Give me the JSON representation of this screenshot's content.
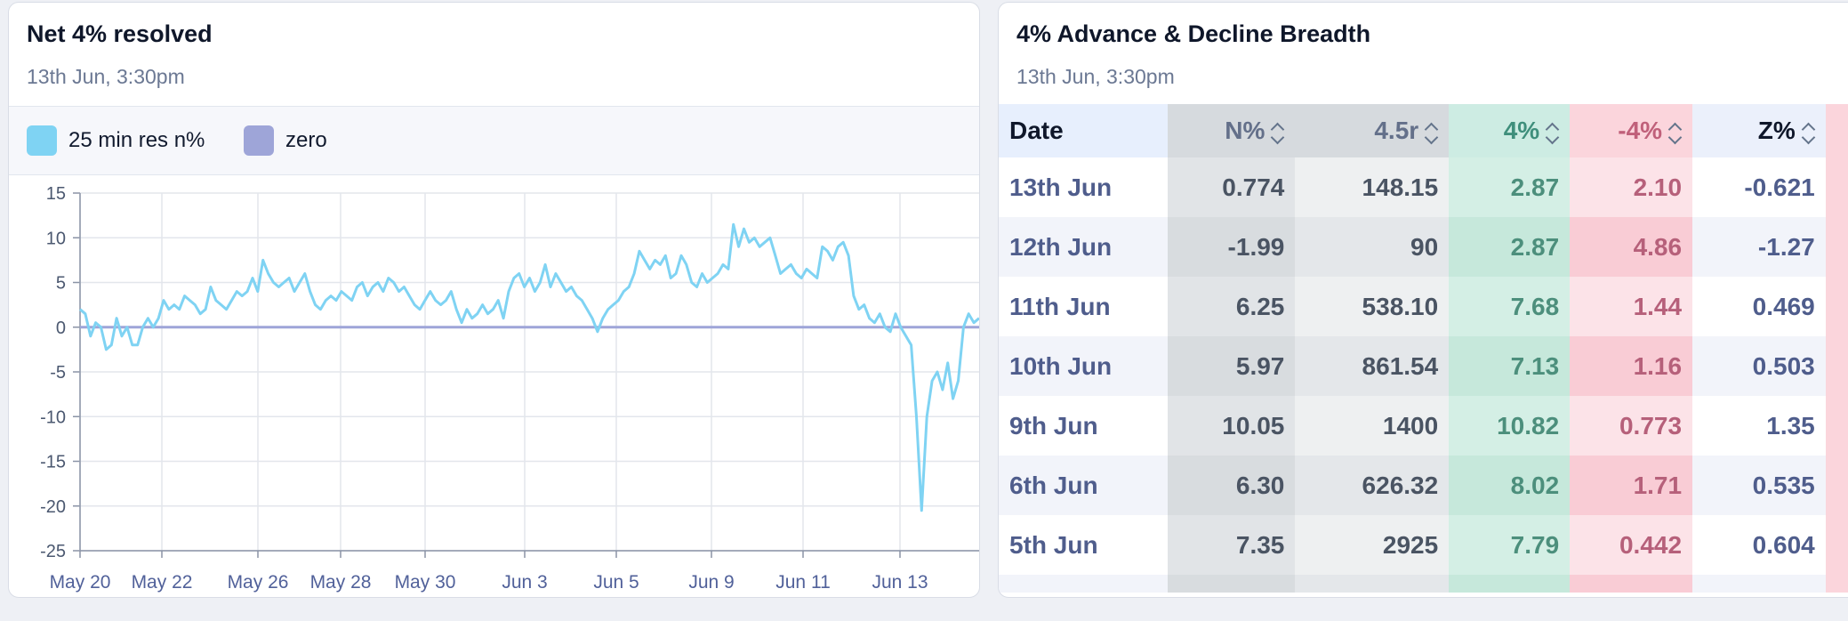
{
  "left_card": {
    "title": "Net 4% resolved",
    "timestamp": "13th Jun, 3:30pm",
    "legend": [
      {
        "label": "25 min res n%",
        "color": "#7fd3f3"
      },
      {
        "label": "zero",
        "color": "#9ea5d8"
      }
    ]
  },
  "chart_data": {
    "type": "line",
    "title": "Net 4% resolved",
    "xlabel": "",
    "ylabel": "",
    "ylim": [
      -25,
      15
    ],
    "yticks": [
      15,
      10,
      5,
      0,
      -5,
      -10,
      -15,
      -20,
      -25
    ],
    "x_tick_labels": [
      "May 20",
      "May 22",
      "May 26",
      "May 28",
      "May 30",
      "Jun 3",
      "Jun 5",
      "Jun 9",
      "Jun 11",
      "Jun 13"
    ],
    "grid": true,
    "legend_position": "top-left",
    "series": [
      {
        "name": "25 min res n%",
        "color": "#7fd3f3",
        "values": [
          2,
          1.5,
          -1,
          0.5,
          0,
          -2.5,
          -2,
          1,
          -1,
          0,
          -2,
          -2,
          0,
          1,
          0,
          1,
          3,
          2,
          2.5,
          2,
          3.5,
          3,
          2.5,
          1.5,
          2,
          4.5,
          3,
          2.5,
          2,
          3,
          4,
          3.5,
          4,
          5.5,
          4,
          7.5,
          6,
          5,
          4.5,
          5,
          5.5,
          4,
          5,
          6,
          4,
          2.5,
          2,
          3,
          3.5,
          3,
          4,
          3.5,
          3,
          4.5,
          5,
          3.5,
          4.5,
          5,
          4,
          5.5,
          5,
          4,
          4.5,
          3.5,
          2.5,
          2,
          3,
          4,
          3,
          2.5,
          3,
          4,
          2,
          0.5,
          2,
          1,
          1.5,
          2.5,
          1.5,
          2,
          3,
          1,
          4,
          5.5,
          6,
          4.5,
          5.5,
          4,
          5,
          7,
          4.5,
          6,
          5,
          4,
          4.5,
          3.5,
          3,
          2,
          1,
          -0.5,
          1,
          2,
          2.5,
          3,
          4,
          4.5,
          6,
          8.5,
          7.5,
          6.5,
          7.5,
          7,
          8,
          5.5,
          6,
          8,
          7,
          5,
          4.5,
          6,
          5,
          5.5,
          6,
          7,
          6.5,
          11.5,
          9,
          11,
          9.5,
          10,
          9,
          9.5,
          10,
          8,
          6,
          6.5,
          7,
          6,
          5.5,
          6.5,
          6,
          5.5,
          9,
          8.5,
          7.5,
          9,
          9.5,
          8,
          3.5,
          2,
          2.5,
          1,
          0.5,
          1.5,
          0,
          -0.5,
          1.5,
          0,
          -1,
          -2,
          -10,
          -20.5,
          -10,
          -6,
          -5,
          -7,
          -4,
          -8,
          -6,
          0,
          1.5,
          0.5,
          1
        ]
      },
      {
        "name": "zero",
        "color": "#9ea5d8",
        "values": [
          0,
          0
        ]
      }
    ]
  },
  "right_card": {
    "title": "4% Advance & Decline Breadth",
    "timestamp": "13th Jun, 3:30pm",
    "columns": [
      "Date",
      "N%",
      "4.5r",
      "4%",
      "-4%",
      "Z%"
    ],
    "rows": [
      [
        "13th Jun",
        "0.774",
        "148.15",
        "2.87",
        "2.10",
        "-0.621"
      ],
      [
        "12th Jun",
        "-1.99",
        "90",
        "2.87",
        "4.86",
        "-1.27"
      ],
      [
        "11th Jun",
        "6.25",
        "538.10",
        "7.68",
        "1.44",
        "0.469"
      ],
      [
        "10th Jun",
        "5.97",
        "861.54",
        "7.13",
        "1.16",
        "0.503"
      ],
      [
        "9th Jun",
        "10.05",
        "1400",
        "10.82",
        "0.773",
        "1.35"
      ],
      [
        "6th Jun",
        "6.30",
        "626.32",
        "8.02",
        "1.71",
        "0.535"
      ],
      [
        "5th Jun",
        "7.35",
        "2925",
        "7.79",
        "0.442",
        "0.604"
      ]
    ]
  }
}
